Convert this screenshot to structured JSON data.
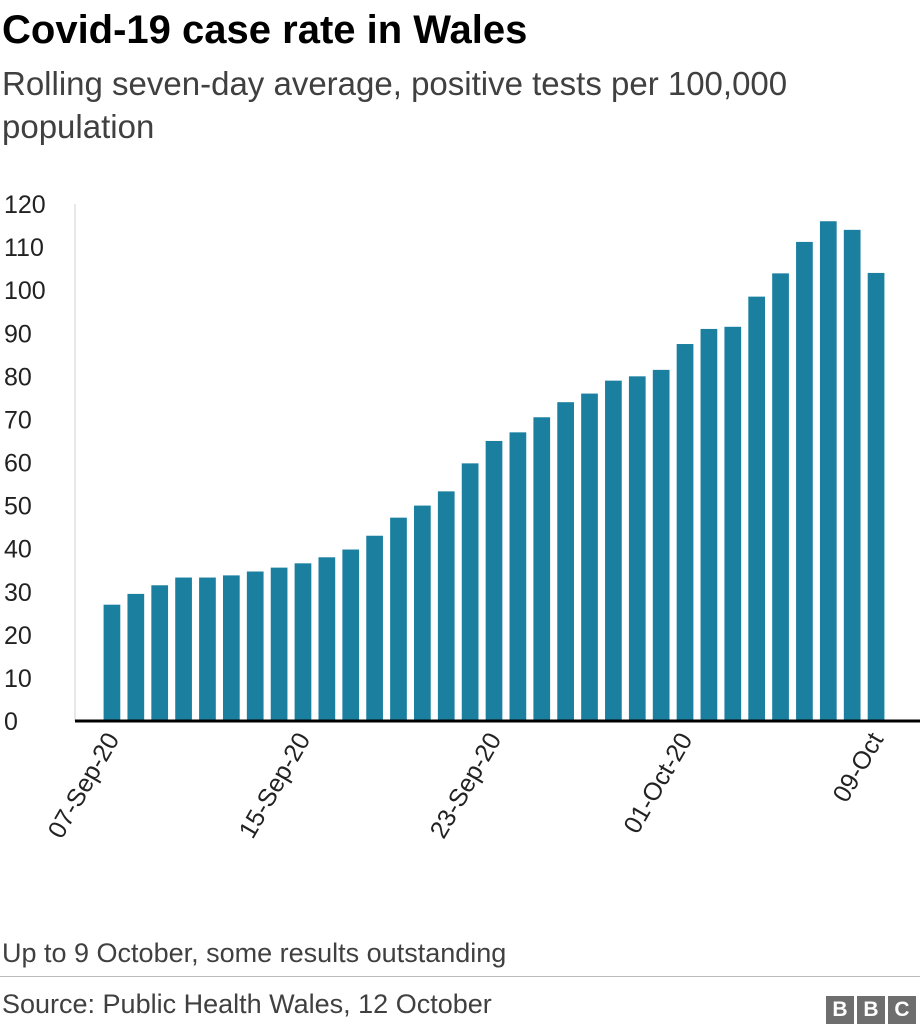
{
  "header": {
    "title": "Covid-19 case rate in Wales",
    "subtitle": "Rolling seven-day average, positive tests per 100,000 population"
  },
  "footer": {
    "note": "Up to 9 October, some results outstanding",
    "source": "Source: Public Health Wales, 12 October",
    "logo_letters": [
      "B",
      "B",
      "C"
    ]
  },
  "colors": {
    "bar": "#1b80a0",
    "baseline": "#000000",
    "logo": "#6e6e6e"
  },
  "chart_data": {
    "type": "bar",
    "title": "Covid-19 case rate in Wales",
    "subtitle": "Rolling seven-day average, positive tests per 100,000 population",
    "xlabel": "",
    "ylabel": "",
    "ylim": [
      0,
      120
    ],
    "yticks": [
      0,
      10,
      20,
      30,
      40,
      50,
      60,
      70,
      80,
      90,
      100,
      110,
      120
    ],
    "grid": false,
    "legend": "none",
    "categories": [
      "07-Sep-20",
      "08-Sep-20",
      "09-Sep-20",
      "10-Sep-20",
      "11-Sep-20",
      "12-Sep-20",
      "13-Sep-20",
      "14-Sep-20",
      "15-Sep-20",
      "16-Sep-20",
      "17-Sep-20",
      "18-Sep-20",
      "19-Sep-20",
      "20-Sep-20",
      "21-Sep-20",
      "22-Sep-20",
      "23-Sep-20",
      "24-Sep-20",
      "25-Sep-20",
      "26-Sep-20",
      "27-Sep-20",
      "28-Sep-20",
      "29-Sep-20",
      "30-Sep-20",
      "01-Oct-20",
      "02-Oct-20",
      "03-Oct-20",
      "04-Oct-20",
      "05-Oct-20",
      "06-Oct-20",
      "07-Oct-20",
      "08-Oct-20",
      "09-Oct"
    ],
    "shown_tick_labels": [
      "07-Sep-20",
      "15-Sep-20",
      "23-Sep-20",
      "01-Oct-20",
      "09-Oct"
    ],
    "values": [
      27,
      29.5,
      31.5,
      33.3,
      33.3,
      33.8,
      34.7,
      35.6,
      36.6,
      38,
      39.8,
      43,
      47.2,
      50,
      53.3,
      59.8,
      65,
      67,
      70.5,
      74,
      76,
      79,
      80,
      81.5,
      87.5,
      91,
      91.5,
      98.5,
      103.9,
      111.2,
      116,
      114,
      104
    ]
  }
}
